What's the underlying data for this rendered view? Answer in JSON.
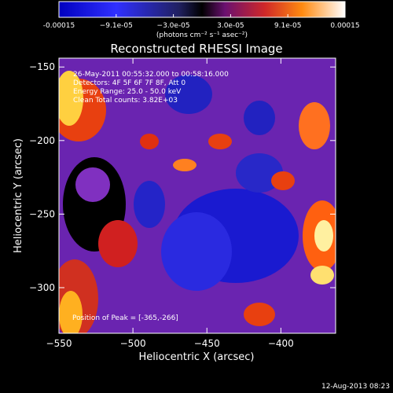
{
  "chart_data": {
    "type": "heatmap",
    "title": "Reconstructed RHESSI Image",
    "xlabel": "Heliocentric X (arcsec)",
    "ylabel": "Heliocentric Y (arcsec)",
    "xlim": [
      -550,
      -363
    ],
    "ylim": [
      -331,
      -144
    ],
    "x_ticks": [
      -550,
      -500,
      -450,
      -400
    ],
    "y_ticks": [
      -150,
      -200,
      -250,
      -300
    ],
    "colorbar": {
      "range": [
        -0.00015,
        0.00015
      ],
      "tick_labels": [
        "-0.00015",
        "−9.1e-05",
        "−3.0e-05",
        "3.0e-05",
        "9.1e-05",
        "0.00015"
      ],
      "units": "(photons cm⁻² s⁻¹ asec⁻²)"
    },
    "annotations": [
      "26-May-2011 00:55:32.000 to 00:58:16.000",
      "Detectors: 4F 5F 6F 7F 8F, Att 0",
      "Energy Range: 25.0 - 50.0 keV",
      "Clean    Total counts: 3.82E+03",
      "Position of Peak = [-365,-266]"
    ],
    "timestamp": "12-Aug-2013 08:23",
    "colors": {
      "negative": "#2222dd",
      "zero": "#000000",
      "positive_low": "#7a1f8a",
      "positive_mid": "#e83a10",
      "positive_high": "#ffe87a"
    }
  }
}
